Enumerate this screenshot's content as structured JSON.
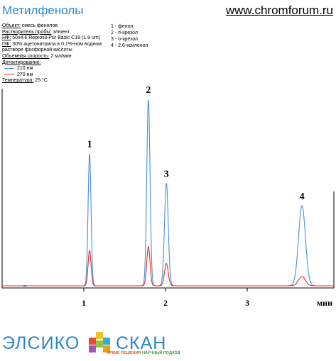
{
  "header": {
    "title": "Метилфенолы",
    "url": "www.chromforum.ru"
  },
  "conditions": {
    "object_label": "Объект:",
    "object_value": "смесь фенолов",
    "solvent_label": "Растворитель пробы:",
    "solvent_value": "элюент",
    "sp_label": "НФ:",
    "sp_value": "50x4.6 Reprosil-Pur Basic C18 (1.9 um)",
    "mp_label": "ПФ:",
    "mp_value": "30% ацетонитрила в 0.1%-ном водном растворе фосфорной кислоты",
    "flow_label": "Объемная скорость:",
    "flow_value": "2 мл/мин",
    "detection_label": "Детектирование:",
    "detection_1": "210 нм",
    "detection_2": "270 нм",
    "temp_label": "Температура:",
    "temp_value": "25 °С"
  },
  "peak_legend": [
    {
      "num": "1",
      "name": "фенол"
    },
    {
      "num": "2",
      "name": "п-крезол"
    },
    {
      "num": "3",
      "name": "о-крезол"
    },
    {
      "num": "4",
      "name": "2,6-ксиленол"
    }
  ],
  "colors": {
    "blue": "#4a8fd8",
    "red": "#d8312a",
    "accent": "#2e86c8"
  },
  "chart_data": {
    "type": "line",
    "xlabel": "мин",
    "x_ticks": [
      1,
      2,
      3
    ],
    "xlim": [
      0,
      4.06
    ],
    "ylim": [
      -0.03,
      1.12
    ],
    "peaks": [
      {
        "label": "1",
        "rt": 1.07,
        "h210": 0.71,
        "h270": 0.19,
        "w": 0.018
      },
      {
        "label": "2",
        "rt": 1.79,
        "h210": 1.0,
        "h270": 0.21,
        "w": 0.02
      },
      {
        "label": "3",
        "rt": 2.01,
        "h210": 0.55,
        "h270": 0.12,
        "w": 0.023
      },
      {
        "label": "4",
        "rt": 3.67,
        "h210": 0.43,
        "h270": 0.05,
        "w": 0.042
      }
    ],
    "series": [
      {
        "name": "210 нм",
        "color": "#4a8fd8"
      },
      {
        "name": "270 нм",
        "color": "#d8312a"
      }
    ]
  },
  "footer": {
    "logo_left": "ЭЛСИКО",
    "logo_right": "СКАН",
    "tagline_a": "ЯРКИЕ РЕШЕНИЯ",
    "tagline_b": "НАУЧНЫЙ ПОДХОД"
  }
}
